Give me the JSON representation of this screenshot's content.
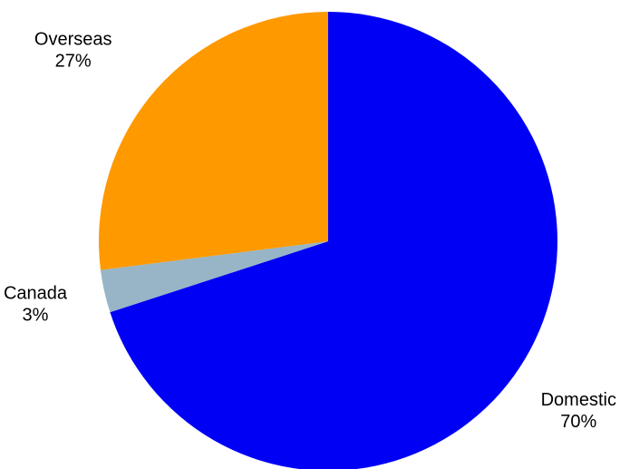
{
  "chart_data": {
    "type": "pie",
    "title": "",
    "slices": [
      {
        "label": "Domestic",
        "value": 70,
        "value_label": "70%",
        "color": "#0000F5"
      },
      {
        "label": "Canada",
        "value": 3,
        "value_label": "3%",
        "color": "#97B5C6"
      },
      {
        "label": "Overseas",
        "value": 27,
        "value_label": "27%",
        "color": "#FF9900"
      }
    ]
  }
}
